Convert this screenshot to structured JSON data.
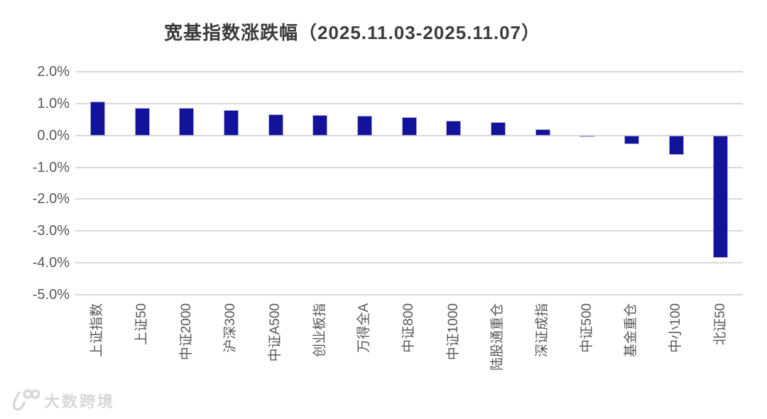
{
  "chart_data": {
    "type": "bar",
    "title": "宽基指数涨跌幅（2025.11.03-2025.11.07）",
    "categories": [
      "上证指数",
      "上证50",
      "中证2000",
      "沪深300",
      "中证A500",
      "创业板指",
      "万得全A",
      "中证800",
      "中证1000",
      "陆股通重仓",
      "深证成指",
      "中证500",
      "基金重仓",
      "中小100",
      "北证50"
    ],
    "values": [
      1.06,
      0.87,
      0.86,
      0.8,
      0.66,
      0.63,
      0.62,
      0.58,
      0.46,
      0.41,
      0.2,
      -0.06,
      -0.27,
      -0.61,
      -3.83
    ],
    "unit": "%",
    "xlabel": "",
    "ylabel": "",
    "ylim": [
      -5.0,
      2.0
    ],
    "ytick_step": 1.0,
    "ytick_labels": [
      "2.0%",
      "1.0%",
      "0.0%",
      "-1.0%",
      "-2.0%",
      "-3.0%",
      "-4.0%",
      "-5.0%"
    ],
    "grid": true,
    "legend": false,
    "bar_color": "#12129A",
    "bar_border_color": "#aaaad8",
    "gridline_color": "#d9d9d9",
    "axis_label_color": "#595959",
    "title_color": "#3b3b3b"
  },
  "watermark": {
    "text": "大数跨境"
  }
}
